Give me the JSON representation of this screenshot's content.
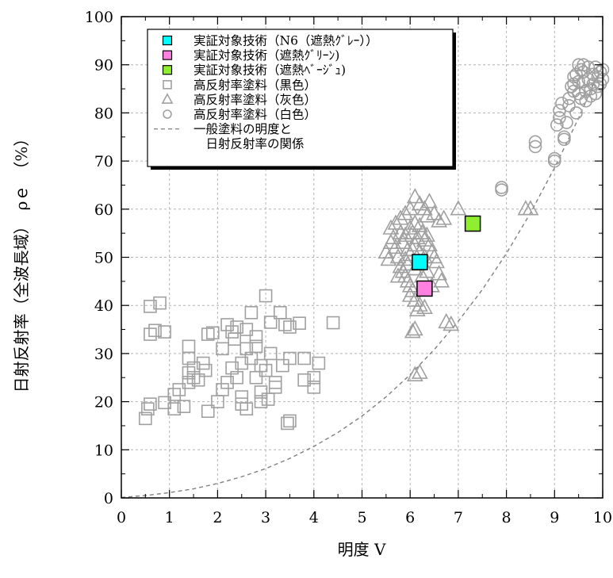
{
  "chart_data": {
    "type": "scatter",
    "xlabel": "明度 V",
    "ylabel": "日射反射率（全波長域）　ρｅ　（%）",
    "xlim": [
      0,
      10
    ],
    "ylim": [
      0,
      100
    ],
    "x_ticks": [
      "0",
      "1",
      "2",
      "3",
      "4",
      "5",
      "6",
      "7",
      "8",
      "9",
      "10"
    ],
    "y_ticks": [
      "0",
      "10",
      "20",
      "30",
      "40",
      "50",
      "60",
      "70",
      "80",
      "90",
      "100"
    ],
    "grid": true,
    "legend_position": "top-left",
    "series": [
      {
        "name": "実証対象技術（N6（遮熱ｸﾞﾚｰ））",
        "marker": "square-filled",
        "color": "#00ffff",
        "points": [
          [
            6.2,
            49.0
          ]
        ]
      },
      {
        "name": "実証対象技術（遮熱ｸﾞﾘｰﾝ)",
        "marker": "square-filled",
        "color": "#ff80e0",
        "points": [
          [
            6.3,
            43.5
          ]
        ]
      },
      {
        "name": "実証対象技術（遮熱ﾍﾞｰｼﾞｭ)",
        "marker": "square-filled",
        "color": "#90ee30",
        "points": [
          [
            7.3,
            57.0
          ]
        ]
      },
      {
        "name": "高反射率塗料（黒色）",
        "marker": "square-open",
        "color": "#a0a0a0",
        "points": [
          [
            0.6,
            39.8
          ],
          [
            0.8,
            40.5
          ],
          [
            0.6,
            34.0
          ],
          [
            0.7,
            34.8
          ],
          [
            0.9,
            34.5
          ],
          [
            0.5,
            16.5
          ],
          [
            0.55,
            18.5
          ],
          [
            0.6,
            19.5
          ],
          [
            0.9,
            19.8
          ],
          [
            1.1,
            18.5
          ],
          [
            1.1,
            21.5
          ],
          [
            1.2,
            22.5
          ],
          [
            1.3,
            19.0
          ],
          [
            1.4,
            24.0
          ],
          [
            1.4,
            26.0
          ],
          [
            1.4,
            29.0
          ],
          [
            1.4,
            31.5
          ],
          [
            1.5,
            27.0
          ],
          [
            1.5,
            25.0
          ],
          [
            1.6,
            24.5
          ],
          [
            1.7,
            28.0
          ],
          [
            1.75,
            26.5
          ],
          [
            1.8,
            34.0
          ],
          [
            1.9,
            34.3
          ],
          [
            1.8,
            18.0
          ],
          [
            2.0,
            20.0
          ],
          [
            2.1,
            22.5
          ],
          [
            2.2,
            24.0
          ],
          [
            2.2,
            36.0
          ],
          [
            2.3,
            27.0
          ],
          [
            2.35,
            33.0
          ],
          [
            2.4,
            35.5
          ],
          [
            2.5,
            28.0
          ],
          [
            2.5,
            21.0
          ],
          [
            2.5,
            19.5
          ],
          [
            2.6,
            31.0
          ],
          [
            2.6,
            18.5
          ],
          [
            2.7,
            29.0
          ],
          [
            2.7,
            38.5
          ],
          [
            2.8,
            25.0
          ],
          [
            2.8,
            33.5
          ],
          [
            2.9,
            27.5
          ],
          [
            2.9,
            22.0
          ],
          [
            3.0,
            26.5
          ],
          [
            3.0,
            42.0
          ],
          [
            3.05,
            20.5
          ],
          [
            3.1,
            30.0
          ],
          [
            3.1,
            36.5
          ],
          [
            3.2,
            24.0
          ],
          [
            3.2,
            23.0
          ],
          [
            3.3,
            38.5
          ],
          [
            3.35,
            27.5
          ],
          [
            3.4,
            36.0
          ],
          [
            3.45,
            15.5
          ],
          [
            3.5,
            29.0
          ],
          [
            3.5,
            35.5
          ],
          [
            3.5,
            16.0
          ],
          [
            3.7,
            36.3
          ],
          [
            3.8,
            29.0
          ],
          [
            3.8,
            24.5
          ],
          [
            4.0,
            25.0
          ],
          [
            4.0,
            23.0
          ],
          [
            4.1,
            28.0
          ],
          [
            4.4,
            36.4
          ],
          [
            2.1,
            31.0
          ],
          [
            2.3,
            34.5
          ],
          [
            2.6,
            35.0
          ],
          [
            2.8,
            31.5
          ],
          [
            2.4,
            25.0
          ],
          [
            2.9,
            20.0
          ]
        ]
      },
      {
        "name": "高反射率塗料（灰色）",
        "marker": "triangle-open",
        "color": "#a0a0a0",
        "points": [
          [
            5.6,
            56.0
          ],
          [
            5.7,
            57.0
          ],
          [
            5.8,
            58.0
          ],
          [
            5.9,
            59.0
          ],
          [
            6.0,
            60.0
          ],
          [
            6.1,
            62.5
          ],
          [
            6.2,
            61.0
          ],
          [
            6.3,
            60.0
          ],
          [
            6.35,
            58.5
          ],
          [
            6.4,
            61.5
          ],
          [
            6.5,
            59.0
          ],
          [
            6.6,
            57.5
          ],
          [
            6.7,
            58.0
          ],
          [
            7.0,
            60.0
          ],
          [
            5.5,
            51.0
          ],
          [
            5.55,
            49.5
          ],
          [
            5.6,
            53.0
          ],
          [
            5.65,
            54.0
          ],
          [
            5.7,
            52.0
          ],
          [
            5.75,
            50.0
          ],
          [
            5.8,
            55.0
          ],
          [
            5.85,
            53.0
          ],
          [
            5.9,
            54.5
          ],
          [
            5.95,
            51.5
          ],
          [
            6.0,
            56.0
          ],
          [
            6.05,
            55.0
          ],
          [
            6.1,
            57.0
          ],
          [
            6.15,
            54.0
          ],
          [
            6.2,
            56.5
          ],
          [
            6.25,
            55.0
          ],
          [
            6.3,
            53.5
          ],
          [
            6.35,
            54.5
          ],
          [
            6.4,
            52.5
          ],
          [
            6.45,
            51.0
          ],
          [
            6.5,
            50.0
          ],
          [
            6.55,
            49.0
          ],
          [
            6.6,
            46.5
          ],
          [
            6.65,
            45.0
          ],
          [
            5.8,
            48.0
          ],
          [
            5.85,
            47.0
          ],
          [
            5.9,
            46.0
          ],
          [
            5.95,
            45.0
          ],
          [
            6.0,
            44.0
          ],
          [
            6.05,
            43.0
          ],
          [
            6.1,
            47.5
          ],
          [
            6.15,
            48.5
          ],
          [
            5.9,
            49.5
          ],
          [
            6.0,
            50.5
          ],
          [
            6.05,
            51.5
          ],
          [
            6.1,
            52.5
          ],
          [
            6.2,
            51.0
          ],
          [
            6.3,
            50.0
          ],
          [
            6.1,
            41.0
          ],
          [
            6.2,
            40.0
          ],
          [
            6.15,
            39.0
          ],
          [
            6.3,
            39.5
          ],
          [
            6.05,
            34.5
          ],
          [
            6.1,
            35.0
          ],
          [
            6.1,
            25.5
          ],
          [
            6.2,
            26.0
          ],
          [
            6.75,
            36.5
          ],
          [
            6.85,
            36.0
          ],
          [
            8.4,
            60.0
          ],
          [
            8.5,
            60.0
          ],
          [
            6.0,
            42.0
          ],
          [
            5.95,
            48.5
          ],
          [
            6.25,
            46.0
          ],
          [
            6.35,
            47.0
          ],
          [
            6.45,
            44.0
          ],
          [
            5.75,
            46.0
          ]
        ]
      },
      {
        "name": "高反射率塗料（白色）",
        "marker": "circle-open",
        "color": "#a0a0a0",
        "points": [
          [
            7.9,
            64.5
          ],
          [
            7.9,
            64.0
          ],
          [
            8.6,
            73.0
          ],
          [
            8.6,
            74.0
          ],
          [
            9.0,
            70.0
          ],
          [
            9.0,
            70.5
          ],
          [
            9.05,
            77.5
          ],
          [
            9.1,
            79.0
          ],
          [
            9.1,
            80.5
          ],
          [
            9.15,
            82.0
          ],
          [
            9.2,
            74.5
          ],
          [
            9.2,
            75.0
          ],
          [
            9.25,
            78.0
          ],
          [
            9.3,
            83.0
          ],
          [
            9.3,
            81.5
          ],
          [
            9.35,
            85.5
          ],
          [
            9.4,
            87.5
          ],
          [
            9.4,
            86.0
          ],
          [
            9.45,
            88.0
          ],
          [
            9.5,
            90.0
          ],
          [
            9.5,
            84.0
          ],
          [
            9.55,
            89.0
          ],
          [
            9.6,
            88.5
          ],
          [
            9.6,
            86.5
          ],
          [
            9.65,
            84.5
          ],
          [
            9.7,
            87.0
          ],
          [
            9.7,
            89.5
          ],
          [
            9.75,
            85.0
          ],
          [
            9.8,
            88.0
          ],
          [
            9.8,
            86.0
          ],
          [
            9.85,
            89.5
          ],
          [
            9.9,
            87.5
          ],
          [
            9.9,
            85.5
          ],
          [
            9.95,
            88.5
          ],
          [
            10.0,
            87.0
          ],
          [
            10.0,
            89.0
          ],
          [
            9.55,
            83.0
          ],
          [
            9.65,
            82.5
          ],
          [
            9.45,
            80.0
          ],
          [
            9.75,
            83.5
          ],
          [
            9.85,
            84.0
          ],
          [
            9.95,
            86.0
          ],
          [
            9.6,
            90.0
          ],
          [
            9.4,
            84.5
          ],
          [
            9.5,
            86.5
          ]
        ]
      },
      {
        "name": "一般塗料の明度と\n　日射反射率の関係",
        "marker": "dashed-line",
        "color": "#808080",
        "points": [
          [
            0,
            0.1
          ],
          [
            0.5,
            0.5
          ],
          [
            1,
            1.1
          ],
          [
            1.5,
            1.9
          ],
          [
            2,
            3.0
          ],
          [
            2.5,
            4.4
          ],
          [
            3,
            6.1
          ],
          [
            3.5,
            8.2
          ],
          [
            4,
            10.7
          ],
          [
            4.5,
            13.6
          ],
          [
            5,
            17.0
          ],
          [
            5.5,
            21.0
          ],
          [
            6,
            25.6
          ],
          [
            6.5,
            30.8
          ],
          [
            7,
            36.7
          ],
          [
            7.5,
            43.3
          ],
          [
            8,
            50.8
          ],
          [
            8.5,
            59.2
          ],
          [
            9,
            68.6
          ],
          [
            9.5,
            78.9
          ],
          [
            10,
            90.3
          ]
        ]
      }
    ]
  }
}
